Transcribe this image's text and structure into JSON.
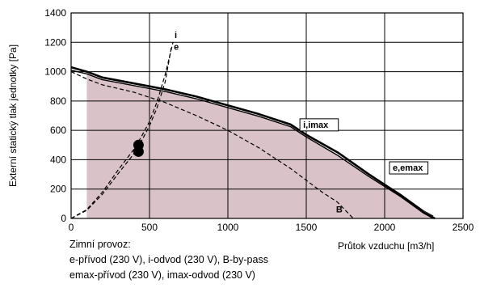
{
  "chart_data": {
    "type": "line",
    "title": "",
    "xlabel": "Průtok vzduchu [m3/h]",
    "ylabel": "Externí statický tlak jednotky [Pa]",
    "xlim": [
      0,
      2500
    ],
    "ylim": [
      0,
      1400
    ],
    "x_ticks": [
      0,
      500,
      1000,
      1500,
      2000,
      2500
    ],
    "y_ticks": [
      0,
      200,
      400,
      600,
      800,
      1000,
      1200,
      1400
    ],
    "grid": true,
    "shaded_area_color": "#d9c2c8",
    "series": [
      {
        "name": "i",
        "style": "dashed",
        "color": "#000000",
        "x": [
          0,
          100,
          200,
          300,
          400,
          450,
          500,
          550,
          600,
          650
        ],
        "y": [
          0,
          60,
          180,
          330,
          470,
          560,
          660,
          800,
          980,
          1200
        ]
      },
      {
        "name": "e",
        "style": "dashed",
        "color": "#000000",
        "x": [
          0,
          100,
          200,
          300,
          400,
          450,
          500,
          550,
          600,
          640
        ],
        "y": [
          0,
          55,
          165,
          305,
          440,
          530,
          630,
          760,
          930,
          1170
        ]
      },
      {
        "name": "i,imax",
        "style": "solid-thick",
        "color": "#000000",
        "x": [
          0,
          100,
          200,
          400,
          600,
          800,
          1000,
          1200,
          1400,
          1500,
          1700,
          1900,
          2100,
          2250,
          2320
        ],
        "y": [
          1030,
          1000,
          960,
          920,
          880,
          830,
          770,
          710,
          640,
          570,
          450,
          300,
          160,
          40,
          0
        ]
      },
      {
        "name": "e,emax",
        "style": "solid",
        "color": "#000000",
        "x": [
          0,
          100,
          200,
          400,
          600,
          800,
          1000,
          1200,
          1400,
          1500,
          1700,
          1900,
          2100,
          2250,
          2310
        ],
        "y": [
          1010,
          985,
          945,
          905,
          865,
          815,
          755,
          695,
          625,
          555,
          430,
          285,
          150,
          35,
          0
        ]
      },
      {
        "name": "B",
        "style": "dashed",
        "color": "#000000",
        "x": [
          0,
          100,
          200,
          400,
          600,
          800,
          1000,
          1200,
          1400,
          1600,
          1700,
          1800
        ],
        "y": [
          1000,
          950,
          910,
          860,
          790,
          700,
          600,
          480,
          340,
          180,
          110,
          0
        ]
      }
    ],
    "points": [
      {
        "x": 430,
        "y": 500
      },
      {
        "x": 430,
        "y": 455
      }
    ],
    "annotations": [
      "i",
      "e",
      "i,imax",
      "e,emax",
      "B"
    ]
  },
  "notes": {
    "line1": "Zimní provoz:",
    "line2": "e-přívod (230 V), i-odvod (230 V), B-by-pass",
    "line3": "emax-přívod (230 V), imax-odvod (230 V)"
  }
}
